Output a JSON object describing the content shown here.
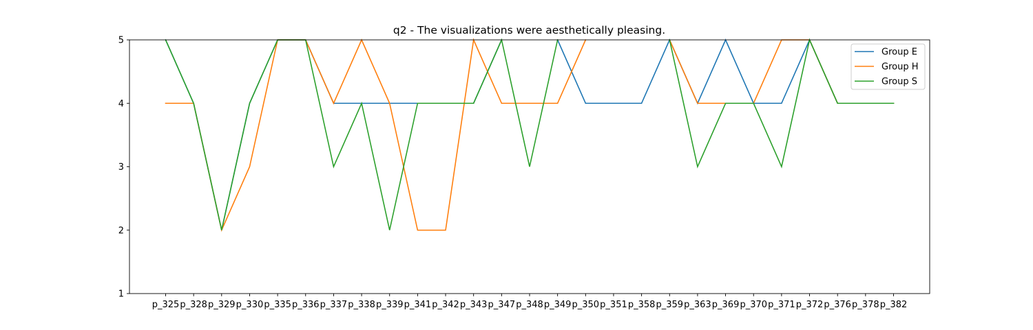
{
  "chart_data": {
    "type": "line",
    "title": "q2 - The visualizations were aesthetically pleasing.",
    "xlabel": "",
    "ylabel": "",
    "categories": [
      "p_325",
      "p_328",
      "p_329",
      "p_330",
      "p_335",
      "p_336",
      "p_337",
      "p_338",
      "p_339",
      "p_341",
      "p_342",
      "p_343",
      "p_347",
      "p_348",
      "p_349",
      "p_350",
      "p_351",
      "p_358",
      "p_359",
      "p_363",
      "p_369",
      "p_370",
      "p_371",
      "p_372",
      "p_376",
      "p_378",
      "p_382"
    ],
    "ylim": [
      1,
      5
    ],
    "yticks": [
      1,
      2,
      3,
      4,
      5
    ],
    "grid": false,
    "legend_position": "top-right",
    "series": [
      {
        "name": "Group E",
        "color": "#1f77b4",
        "values": [
          5,
          4,
          2,
          4,
          5,
          5,
          4,
          4,
          4,
          4,
          4,
          4,
          5,
          null,
          5,
          4,
          4,
          4,
          5,
          4,
          5,
          4,
          4,
          5,
          4,
          4,
          4
        ]
      },
      {
        "name": "Group H",
        "color": "#ff7f0e",
        "values": [
          4,
          4,
          2,
          3,
          5,
          5,
          4,
          5,
          4,
          2,
          2,
          5,
          4,
          4,
          4,
          5,
          null,
          null,
          5,
          4,
          4,
          4,
          5,
          5,
          4,
          4,
          4
        ]
      },
      {
        "name": "Group S",
        "color": "#2ca02c",
        "values": [
          5,
          4,
          2,
          4,
          5,
          5,
          3,
          4,
          2,
          4,
          4,
          4,
          5,
          3,
          5,
          null,
          null,
          null,
          5,
          3,
          4,
          4,
          3,
          5,
          4,
          4,
          4
        ]
      }
    ]
  }
}
